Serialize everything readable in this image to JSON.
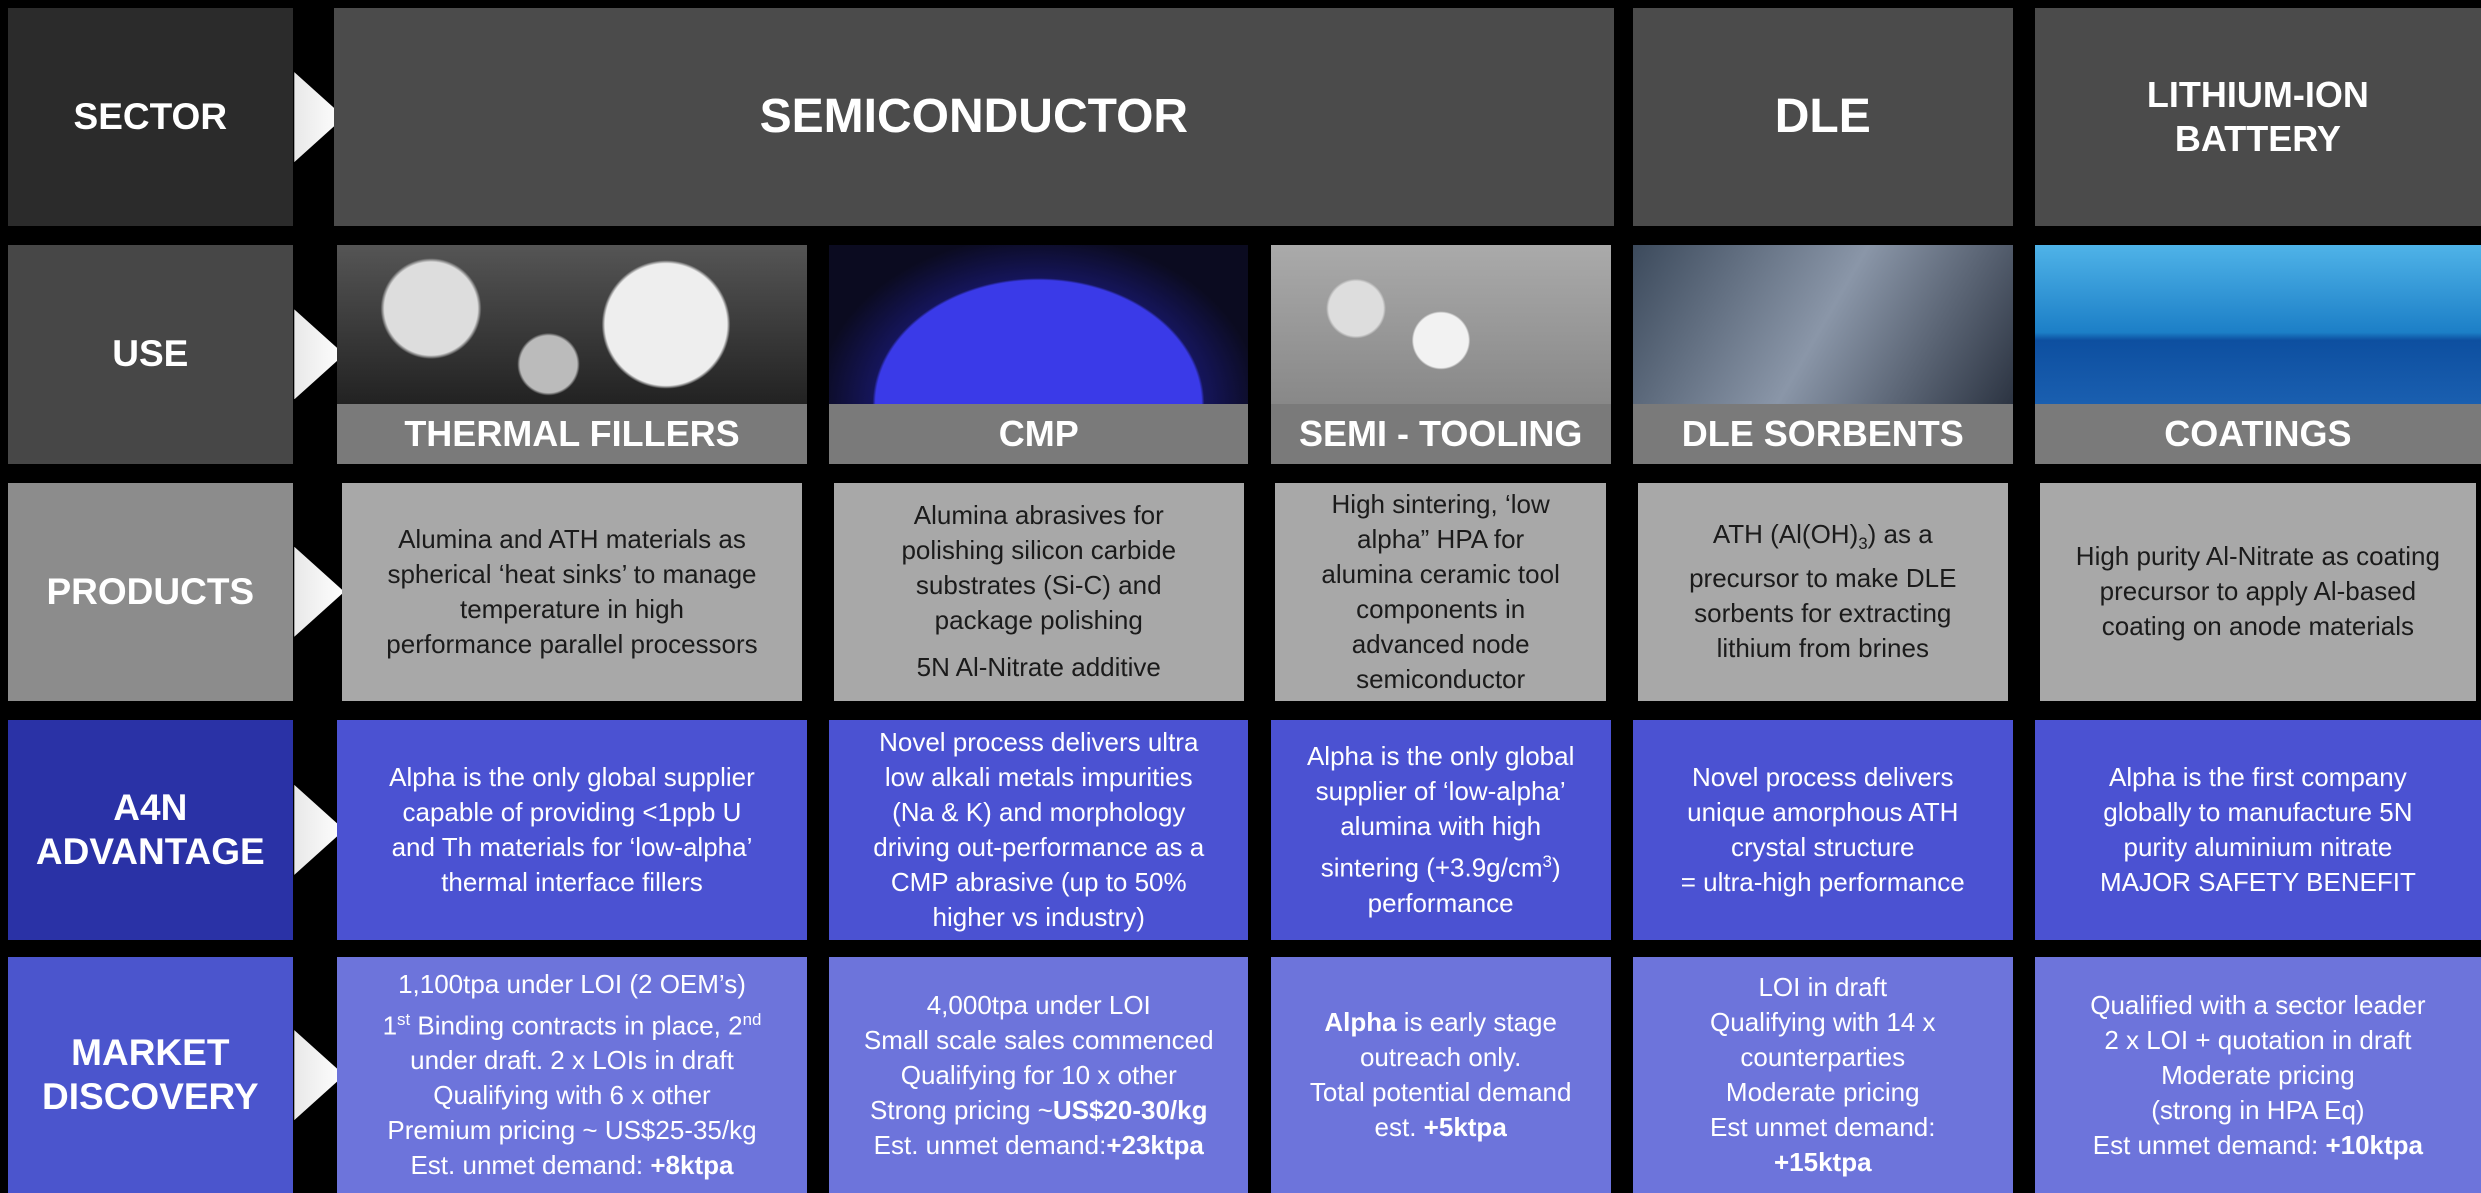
{
  "row_labels": [
    [
      "SECTOR"
    ],
    [
      "USE"
    ],
    [
      "PRODUCTS"
    ],
    [
      "A4N",
      "ADVANTAGE"
    ],
    [
      "MARKET",
      "DISCOVERY"
    ]
  ],
  "sectors": [
    [
      "SEMICONDUCTOR"
    ],
    [
      "DLE"
    ],
    [
      "LITHIUM-ION",
      "BATTERY"
    ]
  ],
  "uses": [
    "THERMAL FILLERS",
    "CMP",
    "SEMI - TOOLING",
    "DLE SORBENTS",
    "COATINGS"
  ],
  "products": [
    [
      "Alumina and ATH materials as",
      "spherical ‘heat sinks’ to manage",
      "temperature in high",
      "performance parallel processors"
    ],
    [
      "Alumina abrasives for",
      "polishing silicon carbide",
      "substrates (Si-C) and",
      "package polishing",
      "5N Al-Nitrate additive"
    ],
    [
      "High sintering, ‘low",
      "alpha” HPA for",
      "alumina ceramic tool",
      "components in",
      "advanced node",
      "semiconductor"
    ],
    [
      [
        "ATH (Al(OH)",
        {
          "text": "3",
          "style": "sub"
        },
        ") as a"
      ],
      "precursor to make DLE",
      "sorbents for extracting",
      "lithium from brines"
    ],
    [
      "High purity Al-Nitrate as coating",
      "precursor to apply Al-based",
      "coating on anode materials"
    ]
  ],
  "advantage": [
    [
      "Alpha is the only global supplier",
      "capable of providing <1ppb U",
      "and Th materials for ‘low-alpha’",
      "thermal interface fillers"
    ],
    [
      "Novel process delivers ultra",
      "low alkali metals impurities",
      "(Na & K) and morphology",
      "driving out-performance as a",
      "CMP abrasive (up to 50%",
      "higher vs industry)"
    ],
    [
      "Alpha is the only global",
      "supplier of ‘low-alpha’",
      "alumina with high",
      [
        "sintering (+3.9g/cm",
        {
          "text": "3",
          "style": "sup"
        },
        ")"
      ],
      "performance"
    ],
    [
      "Novel process delivers",
      "unique amorphous ATH",
      "crystal structure",
      "= ultra-high performance"
    ],
    [
      "Alpha is the first company",
      "globally to manufacture 5N",
      "purity aluminium nitrate",
      "MAJOR SAFETY BENEFIT"
    ]
  ],
  "market": [
    [
      "1,100tpa under LOI (2 OEM’s)",
      [
        "1",
        {
          "text": "st",
          "style": "sup"
        },
        " Binding contracts in place, 2",
        {
          "text": "nd",
          "style": "sup"
        }
      ],
      "under draft. 2 x LOIs in draft",
      "Qualifying with 6 x other",
      "Premium pricing ~ US$25-35/kg",
      [
        "Est. unmet demand: ",
        {
          "text": "+8ktpa",
          "style": "bold"
        }
      ]
    ],
    [
      "4,000tpa under LOI",
      "Small scale sales commenced",
      "Qualifying for 10 x other",
      [
        "Strong pricing ~",
        {
          "text": "US$20-30/kg",
          "style": "bold"
        }
      ],
      [
        "Est. unmet demand:",
        {
          "text": "+23ktpa",
          "style": "bold"
        }
      ]
    ],
    [
      [
        {
          "text": "Alpha",
          "style": "bold"
        },
        " is early stage"
      ],
      "outreach only.",
      "Total potential demand",
      [
        "est. ",
        {
          "text": "+5ktpa",
          "style": "bold"
        }
      ]
    ],
    [
      "LOI in draft",
      "Qualifying with 14 x",
      "counterparties",
      "Moderate pricing",
      "Est unmet demand:",
      [
        {
          "text": "+15ktpa",
          "style": "bold"
        }
      ]
    ],
    [
      "Qualified with a sector leader",
      "2 x LOI + quotation in draft",
      "Moderate pricing",
      "(strong in HPA Eq)",
      [
        "Est unmet demand: ",
        {
          "text": "+10ktpa",
          "style": "bold"
        }
      ]
    ]
  ]
}
